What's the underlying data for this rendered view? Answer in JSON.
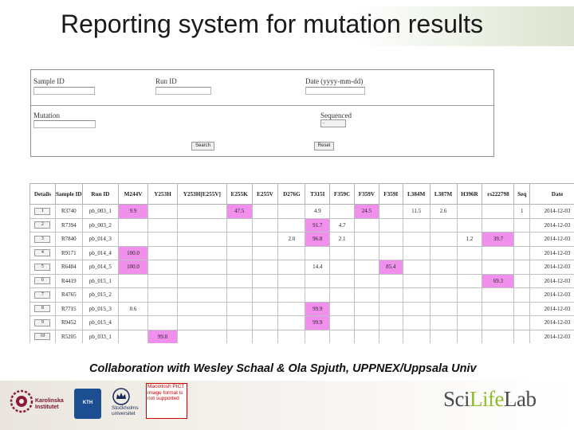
{
  "slide": {
    "title": "Reporting system for mutation results",
    "credit": "Collaboration with Wesley Schaal & Ola Spjuth, UPPNEX/Uppsala Univ"
  },
  "search_form": {
    "sample_id_label": "Sample ID",
    "run_id_label": "Run ID",
    "date_label": "Date (yyyy-mm-dd)",
    "mutation_label": "Mutation",
    "sequenced_label": "Sequenced",
    "sequenced_value": "-",
    "search_button": "Search",
    "reset_button": "Reset"
  },
  "results": {
    "columns": [
      "Details",
      "Sample ID",
      "Run ID",
      "M244V",
      "Y253H",
      "Y253H[E255V]",
      "E255K",
      "E255V",
      "D276G",
      "T315I",
      "F359C",
      "F359V",
      "F359I",
      "L384M",
      "L387M",
      "H396R",
      "rs222798",
      "Seq",
      "Date"
    ],
    "rows": [
      {
        "details": "1",
        "sample": "R3740",
        "run": "pb_003_1",
        "cells": [
          "9.9",
          "",
          "",
          "47.5",
          "",
          "",
          "4.9",
          "",
          "24.5",
          "",
          "11.5",
          "2.6",
          "",
          "",
          "1"
        ],
        "hits": [
          true,
          false,
          false,
          true,
          false,
          false,
          false,
          false,
          true,
          false,
          false,
          false,
          false,
          false,
          false
        ],
        "date": "2014-12-03"
      },
      {
        "details": "2",
        "sample": "R7394",
        "run": "pb_003_2",
        "cells": [
          "",
          "",
          "",
          "",
          "",
          "",
          "91.7",
          "4.7",
          "",
          "",
          "",
          "",
          "",
          "",
          ""
        ],
        "hits": [
          false,
          false,
          false,
          false,
          false,
          false,
          true,
          false,
          false,
          false,
          false,
          false,
          false,
          false,
          false
        ],
        "date": "2014-12-03"
      },
      {
        "details": "3",
        "sample": "R7840",
        "run": "pb_014_3",
        "cells": [
          "",
          "",
          "",
          "",
          "",
          "2.0",
          "96.8",
          "2.1",
          "",
          "",
          "",
          "",
          "1.2",
          "39.7",
          ""
        ],
        "hits": [
          false,
          false,
          false,
          false,
          false,
          false,
          true,
          false,
          false,
          false,
          false,
          false,
          false,
          true,
          false
        ],
        "date": "2014-12-03"
      },
      {
        "details": "4",
        "sample": "R9171",
        "run": "pb_014_4",
        "cells": [
          "100.0",
          "",
          "",
          "",
          "",
          "",
          "",
          "",
          "",
          "",
          "",
          "",
          "",
          "",
          ""
        ],
        "hits": [
          true,
          false,
          false,
          false,
          false,
          false,
          false,
          false,
          false,
          false,
          false,
          false,
          false,
          false,
          false
        ],
        "date": "2014-12-03"
      },
      {
        "details": "5",
        "sample": "R6484",
        "run": "pb_014_5",
        "cells": [
          "100.0",
          "",
          "",
          "",
          "",
          "",
          "14.4",
          "",
          "",
          "85.4",
          "",
          "",
          "",
          "",
          ""
        ],
        "hits": [
          true,
          false,
          false,
          false,
          false,
          false,
          false,
          false,
          false,
          true,
          false,
          false,
          false,
          false,
          false
        ],
        "date": "2014-12-03"
      },
      {
        "details": "6",
        "sample": "R4419",
        "run": "pb_015_1",
        "cells": [
          "",
          "",
          "",
          "",
          "",
          "",
          "",
          "",
          "",
          "",
          "",
          "",
          "",
          "69.3",
          ""
        ],
        "hits": [
          false,
          false,
          false,
          false,
          false,
          false,
          false,
          false,
          false,
          false,
          false,
          false,
          false,
          true,
          false
        ],
        "date": "2014-12-03"
      },
      {
        "details": "7",
        "sample": "R4765",
        "run": "pb_015_2",
        "cells": [
          "",
          "",
          "",
          "",
          "",
          "",
          "",
          "",
          "",
          "",
          "",
          "",
          "",
          "",
          ""
        ],
        "hits": [
          false,
          false,
          false,
          false,
          false,
          false,
          false,
          false,
          false,
          false,
          false,
          false,
          false,
          false,
          false
        ],
        "date": "2014-12-03"
      },
      {
        "details": "8",
        "sample": "R7715",
        "run": "pb_015_3",
        "cells": [
          "0.6",
          "",
          "",
          "",
          "",
          "",
          "99.9",
          "",
          "",
          "",
          "",
          "",
          "",
          "",
          ""
        ],
        "hits": [
          false,
          false,
          false,
          false,
          false,
          false,
          true,
          false,
          false,
          false,
          false,
          false,
          false,
          false,
          false
        ],
        "date": "2014-12-03"
      },
      {
        "details": "9",
        "sample": "R9452",
        "run": "pb_015_4",
        "cells": [
          "",
          "",
          "",
          "",
          "",
          "",
          "99.9",
          "",
          "",
          "",
          "",
          "",
          "",
          "",
          ""
        ],
        "hits": [
          false,
          false,
          false,
          false,
          false,
          false,
          true,
          false,
          false,
          false,
          false,
          false,
          false,
          false,
          false
        ],
        "date": "2014-12-03"
      },
      {
        "details": "10",
        "sample": "R5205",
        "run": "pb_033_1",
        "cells": [
          "",
          "99.8",
          "",
          "",
          "",
          "",
          "",
          "",
          "",
          "",
          "",
          "",
          "",
          "",
          ""
        ],
        "hits": [
          false,
          true,
          false,
          false,
          false,
          false,
          false,
          false,
          false,
          false,
          false,
          false,
          false,
          false,
          false
        ],
        "date": "2014-12-03"
      }
    ],
    "hit_color": "#f090ec"
  },
  "logos": {
    "karolinska": "Karolinska Institutet",
    "karolinska_line1": "Karolinska",
    "karolinska_line2": "Institutet",
    "kth": "KTH",
    "stockholm_line1": "Stockholms",
    "stockholm_line2": "universitet",
    "pict_placeholder": "Macintosh PICT image format is not supported",
    "scilifelab_a": "Sci",
    "scilifelab_b": "Life",
    "scilifelab_c": "Lab"
  }
}
